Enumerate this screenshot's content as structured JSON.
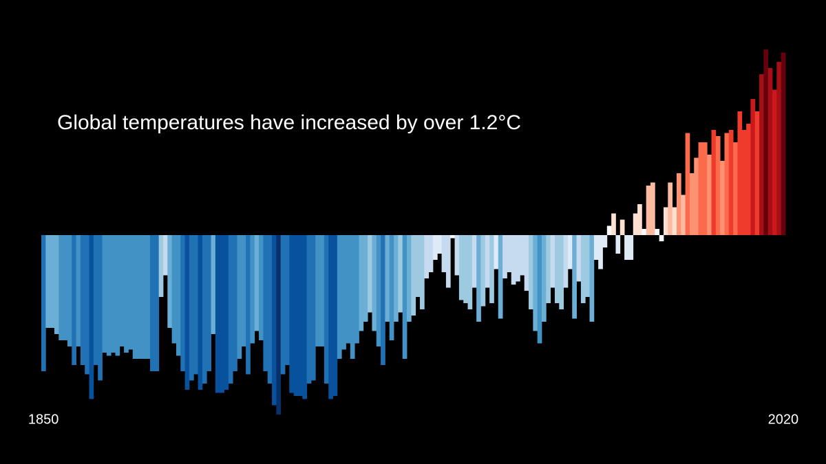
{
  "chart_data": {
    "type": "bar",
    "title": "Global temperatures have increased by over 1.2°C",
    "categories": [
      "1850",
      null,
      null,
      null,
      null,
      null,
      null,
      null,
      null,
      null,
      null,
      null,
      null,
      null,
      null,
      null,
      null,
      null,
      null,
      null,
      null,
      null,
      null,
      null,
      null,
      null,
      null,
      null,
      null,
      null,
      null,
      null,
      null,
      null,
      null,
      null,
      null,
      null,
      null,
      null,
      null,
      null,
      null,
      null,
      null,
      null,
      null,
      null,
      null,
      null,
      null,
      null,
      null,
      null,
      null,
      null,
      null,
      null,
      null,
      null,
      null,
      null,
      null,
      null,
      null,
      null,
      null,
      null,
      null,
      null,
      null,
      null,
      null,
      null,
      null,
      null,
      null,
      null,
      null,
      null,
      null,
      null,
      null,
      null,
      null,
      null,
      null,
      null,
      null,
      null,
      null,
      null,
      null,
      null,
      null,
      null,
      null,
      null,
      null,
      null,
      null,
      null,
      null,
      null,
      null,
      null,
      null,
      null,
      null,
      null,
      null,
      null,
      null,
      null,
      null,
      null,
      null,
      null,
      null,
      null,
      null,
      null,
      null,
      null,
      null,
      null,
      null,
      null,
      null,
      null,
      null,
      null,
      null,
      null,
      null,
      null,
      null,
      null,
      null,
      null,
      null,
      null,
      null,
      null,
      null,
      null,
      null,
      null,
      null,
      null,
      null,
      null,
      null,
      null,
      null,
      null,
      null,
      null,
      null,
      null,
      null,
      null,
      null,
      null,
      null,
      null,
      null,
      null,
      null,
      null,
      "2020"
    ],
    "values": [
      -0.44,
      -0.3,
      -0.3,
      -0.32,
      -0.34,
      -0.34,
      -0.36,
      -0.42,
      -0.36,
      -0.42,
      -0.45,
      -0.53,
      -0.42,
      -0.47,
      -0.38,
      -0.39,
      -0.38,
      -0.39,
      -0.36,
      -0.38,
      -0.37,
      -0.4,
      -0.4,
      -0.4,
      -0.4,
      -0.44,
      -0.44,
      -0.2,
      -0.13,
      -0.3,
      -0.35,
      -0.39,
      -0.44,
      -0.5,
      -0.47,
      -0.45,
      -0.5,
      -0.48,
      -0.44,
      -0.32,
      -0.51,
      -0.51,
      -0.5,
      -0.48,
      -0.44,
      -0.4,
      -0.36,
      -0.45,
      -0.35,
      -0.31,
      -0.34,
      -0.44,
      -0.48,
      -0.55,
      -0.58,
      -0.45,
      -0.42,
      -0.51,
      -0.52,
      -0.52,
      -0.53,
      -0.48,
      -0.47,
      -0.36,
      -0.36,
      -0.48,
      -0.53,
      -0.52,
      -0.4,
      -0.37,
      -0.35,
      -0.4,
      -0.35,
      -0.31,
      -0.28,
      -0.25,
      -0.31,
      -0.36,
      -0.42,
      -0.28,
      -0.34,
      -0.28,
      -0.25,
      -0.4,
      -0.28,
      -0.26,
      -0.2,
      -0.24,
      -0.14,
      -0.12,
      -0.08,
      -0.06,
      -0.12,
      -0.17,
      -0.01,
      -0.13,
      -0.21,
      -0.22,
      -0.24,
      -0.17,
      -0.28,
      -0.23,
      -0.17,
      -0.22,
      -0.11,
      -0.27,
      -0.14,
      -0.12,
      -0.16,
      -0.15,
      -0.13,
      -0.18,
      -0.24,
      -0.31,
      -0.35,
      -0.28,
      -0.22,
      -0.17,
      -0.22,
      -0.24,
      -0.17,
      -0.11,
      -0.27,
      -0.15,
      -0.22,
      -0.2,
      -0.28,
      -0.08,
      -0.11,
      -0.04,
      0.03,
      0.07,
      -0.06,
      0.05,
      -0.08,
      -0.08,
      0.07,
      0.1,
      0.02,
      0.16,
      0.17,
      0.02,
      -0.02,
      0.09,
      0.17,
      0.09,
      0.2,
      0.13,
      0.33,
      0.2,
      0.25,
      0.3,
      0.3,
      0.26,
      0.34,
      0.32,
      0.24,
      0.33,
      0.34,
      0.3,
      0.4,
      0.34,
      0.36,
      0.44,
      0.4,
      0.52,
      0.6,
      0.54,
      0.47,
      0.56,
      0.59
    ],
    "ylim": [
      -0.6,
      0.6
    ],
    "colormap": [
      "#08306b",
      "#08519c",
      "#2171b5",
      "#4292c6",
      "#6baed6",
      "#9ecae1",
      "#c6dbef",
      "#deebf7",
      "#f7fbff",
      "#fee0d2",
      "#fcbba1",
      "#fc9272",
      "#fb6a4a",
      "#ef3b2c",
      "#cb181d",
      "#a50f15",
      "#67000d"
    ]
  }
}
